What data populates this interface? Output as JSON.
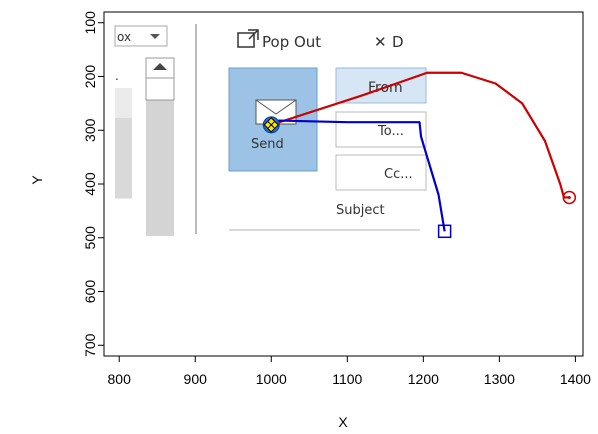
{
  "chart_data": {
    "type": "line",
    "xlabel": "X",
    "ylabel": "Y",
    "xlim": [
      780,
      1410
    ],
    "ylim": [
      720,
      80
    ],
    "y_inverted": true,
    "x_ticks": [
      800,
      900,
      1000,
      1100,
      1200,
      1300,
      1400
    ],
    "y_ticks": [
      100,
      200,
      300,
      400,
      500,
      600,
      700
    ],
    "grid": false,
    "legend": "none",
    "series": [
      {
        "color": "#cc0000",
        "marker_end": "circle",
        "points": [
          [
            1000,
            290
          ],
          [
            1120,
            235
          ],
          [
            1205,
            193
          ],
          [
            1250,
            193
          ],
          [
            1295,
            213
          ],
          [
            1330,
            250
          ],
          [
            1360,
            320
          ],
          [
            1380,
            400
          ],
          [
            1385,
            425
          ],
          [
            1392,
            425
          ]
        ]
      },
      {
        "color": "#0000cc",
        "marker_end": "square",
        "points": [
          [
            1000,
            290
          ],
          [
            1010,
            282
          ],
          [
            1100,
            285
          ],
          [
            1195,
            285
          ],
          [
            1197,
            312
          ],
          [
            1220,
            420
          ],
          [
            1228,
            488
          ]
        ]
      }
    ],
    "start_marker": {
      "x": 1000,
      "y": 290
    }
  },
  "screenshot": {
    "dropdown_text": "ox",
    "pop_out_label": "Pop Out",
    "discard_label": "D",
    "send_label": "Send",
    "from_label": "From",
    "to_label": "To...",
    "cc_label": "Cc...",
    "subject_label": "Subject"
  }
}
